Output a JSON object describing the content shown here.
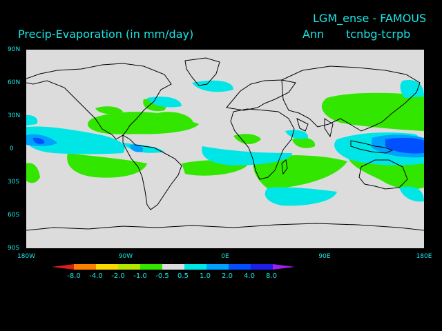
{
  "header": {
    "model_title": "LGM_ense - FAMOUS",
    "variable_title": "Precip-Evaporation (in mm/day)",
    "period": "Ann",
    "experiment": "tcnbg-tcrpb"
  },
  "map": {
    "projection": "cylindrical equidistant",
    "lon_range": [
      -180,
      180
    ],
    "lat_range": [
      -90,
      90
    ],
    "background_color": "#dcdcdc",
    "coastline_color": "#000000",
    "lat_labels": [
      "90N",
      "60N",
      "30N",
      "0",
      "30S",
      "60S",
      "90S"
    ],
    "lon_labels": [
      "180W",
      "90W",
      "0E",
      "90E",
      "180E"
    ]
  },
  "colorbar": {
    "labels": [
      "-8.0",
      "-4.0",
      "-2.0",
      "-1.0",
      "-0.5",
      "0.5",
      "1.0",
      "2.0",
      "4.0",
      "8.0"
    ],
    "colors": [
      "#dc1e1e",
      "#ff7f00",
      "#ffd700",
      "#b4e600",
      "#32e600",
      "#dcdcdc",
      "#00e6e6",
      "#00a0ff",
      "#0050ff",
      "#1e1ee6",
      "#a01ef0"
    ]
  }
}
